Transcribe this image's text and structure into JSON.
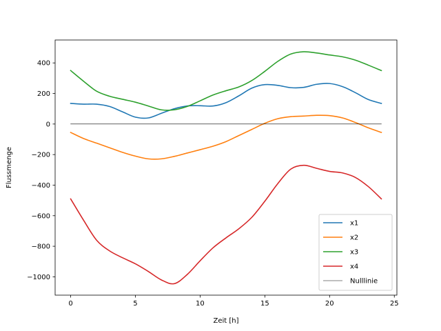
{
  "chart_data": {
    "type": "line",
    "xlabel": "Zeit [h]",
    "ylabel": "Flussmenge",
    "xlim": [
      -1.2,
      25.2
    ],
    "ylim": [
      -1120,
      550
    ],
    "xticks": [
      0,
      5,
      10,
      15,
      20,
      25
    ],
    "yticks": [
      -1000,
      -800,
      -600,
      -400,
      -200,
      0,
      200,
      400
    ],
    "ytick_labels": [
      "−1000",
      "−800",
      "−600",
      "−400",
      "−200",
      "0",
      "200",
      "400"
    ],
    "grid": false,
    "legend_position": "lower-right",
    "x": [
      0,
      1,
      2,
      3,
      4,
      5,
      6,
      7,
      8,
      9,
      10,
      11,
      12,
      13,
      14,
      15,
      16,
      17,
      18,
      19,
      20,
      21,
      22,
      23,
      24
    ],
    "series": [
      {
        "name": "x1",
        "color": "#1f77b4",
        "values": [
          135,
          130,
          130,
          115,
          80,
          45,
          40,
          70,
          100,
          118,
          120,
          118,
          140,
          185,
          235,
          258,
          253,
          238,
          240,
          260,
          265,
          245,
          205,
          160,
          135
        ]
      },
      {
        "name": "x2",
        "color": "#ff7f0e",
        "values": [
          -55,
          -95,
          -125,
          -155,
          -185,
          -210,
          -228,
          -228,
          -212,
          -190,
          -168,
          -145,
          -115,
          -75,
          -35,
          5,
          35,
          48,
          52,
          57,
          55,
          40,
          10,
          -25,
          -55
        ]
      },
      {
        "name": "x3",
        "color": "#2ca02c",
        "values": [
          350,
          280,
          215,
          182,
          162,
          143,
          118,
          93,
          93,
          115,
          152,
          190,
          218,
          243,
          285,
          345,
          410,
          458,
          473,
          465,
          452,
          440,
          418,
          385,
          350
        ]
      },
      {
        "name": "x4",
        "color": "#d62728",
        "values": [
          -490,
          -630,
          -760,
          -830,
          -875,
          -915,
          -965,
          -1020,
          -1045,
          -985,
          -895,
          -810,
          -745,
          -685,
          -610,
          -505,
          -390,
          -295,
          -270,
          -290,
          -310,
          -320,
          -350,
          -410,
          -490
        ]
      },
      {
        "name": "Nulllinie",
        "color": "#000000",
        "values": [
          0,
          0,
          0,
          0,
          0,
          0,
          0,
          0,
          0,
          0,
          0,
          0,
          0,
          0,
          0,
          0,
          0,
          0,
          0,
          0,
          0,
          0,
          0,
          0,
          0
        ]
      }
    ]
  }
}
